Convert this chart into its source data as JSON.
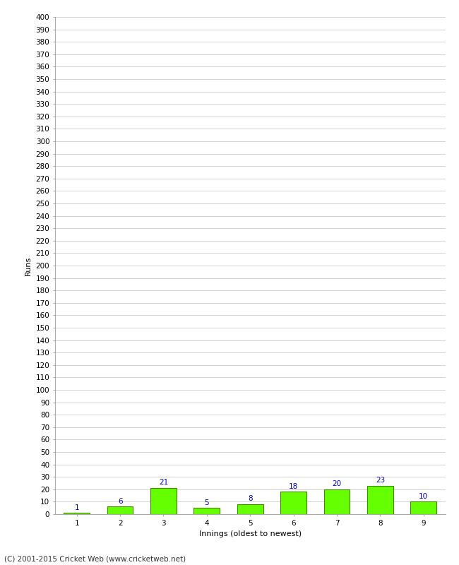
{
  "innings": [
    1,
    2,
    3,
    4,
    5,
    6,
    7,
    8,
    9
  ],
  "runs": [
    1,
    6,
    21,
    5,
    8,
    18,
    20,
    23,
    10
  ],
  "bar_color": "#66ff00",
  "bar_edge_color": "#448800",
  "xlabel": "Innings (oldest to newest)",
  "ylabel": "Runs",
  "ylim": [
    0,
    400
  ],
  "label_color": "#0000cc",
  "footer": "(C) 2001-2015 Cricket Web (www.cricketweb.net)",
  "background_color": "#ffffff",
  "grid_color": "#cccccc",
  "label_fontsize": 7.5,
  "axis_tick_fontsize": 7.5,
  "axis_label_fontsize": 8,
  "footer_fontsize": 7.5
}
